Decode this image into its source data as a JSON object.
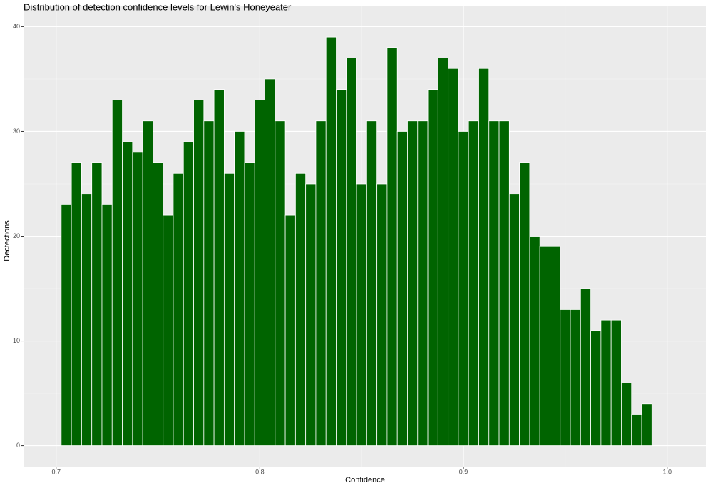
{
  "chart_data": {
    "type": "histogram",
    "title": "Distribution of detection confidence levels for Lewin's Honeyeater",
    "x_label": "Confidence",
    "y_label": "Dectections",
    "bins": [
      0.7025,
      0.7075,
      0.7125,
      0.7175,
      0.7225,
      0.7275,
      0.7325,
      0.7375,
      0.7425,
      0.7475,
      0.7525,
      0.7575,
      0.7625,
      0.7675,
      0.7725,
      0.7775,
      0.7825,
      0.7875,
      0.7925,
      0.7975,
      0.8025,
      0.8075,
      0.8125,
      0.8175,
      0.8225,
      0.8275,
      0.8325,
      0.8375,
      0.8425,
      0.8475,
      0.8525,
      0.8575,
      0.8625,
      0.8675,
      0.8725,
      0.8775,
      0.8825,
      0.8875,
      0.8925,
      0.8975,
      0.9025,
      0.9075,
      0.9125,
      0.9175,
      0.9225,
      0.9275,
      0.9325,
      0.9375,
      0.9425,
      0.9475,
      0.9525,
      0.9575,
      0.9625,
      0.9675,
      0.9725,
      0.9775,
      0.9825,
      0.9875,
      0.9925
    ],
    "values": [
      23,
      27,
      24,
      27,
      23,
      33,
      29,
      28,
      31,
      27,
      22,
      26,
      29,
      33,
      31,
      34,
      26,
      30,
      27,
      33,
      35,
      31,
      22,
      26,
      25,
      31,
      39,
      34,
      37,
      25,
      31,
      25,
      38,
      30,
      31,
      31,
      34,
      37,
      36,
      30,
      31,
      36,
      31,
      31,
      24,
      27,
      20,
      19,
      19,
      13,
      13,
      15,
      11,
      12,
      12,
      6,
      3,
      4
    ],
    "color": "#006400",
    "xlim": [
      0.684,
      1.019
    ],
    "ylim": [
      -2,
      42
    ],
    "xticks": [
      0.7,
      0.8,
      0.9,
      {
        "value": 1.0,
        "label": "1.0"
      }
    ],
    "yticks": [
      0,
      10,
      20,
      30,
      40
    ],
    "grid": true
  }
}
